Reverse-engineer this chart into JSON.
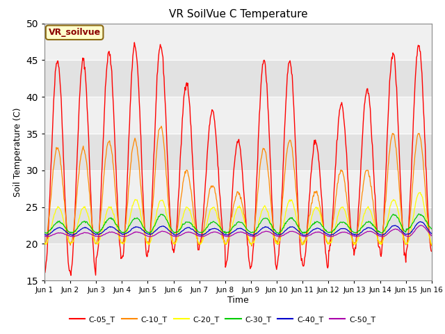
{
  "title": "VR SoilVue C Temperature",
  "ylabel": "Soil Temperature (C)",
  "xlabel": "Time",
  "annotation": "VR_soilvue",
  "ylim": [
    15,
    50
  ],
  "yticks": [
    15,
    20,
    25,
    30,
    35,
    40,
    45,
    50
  ],
  "band_light": "#f0f0f0",
  "band_dark": "#e0e0e0",
  "legend_labels": [
    "C-05_T",
    "C-10_T",
    "C-20_T",
    "C-30_T",
    "C-40_T",
    "C-50_T"
  ],
  "legend_colors": [
    "#ff0000",
    "#ff8800",
    "#ffff00",
    "#00cc00",
    "#0000cc",
    "#aa00aa"
  ],
  "num_days": 15,
  "points_per_day": 48,
  "figwidth": 6.4,
  "figheight": 4.8,
  "dpi": 100
}
